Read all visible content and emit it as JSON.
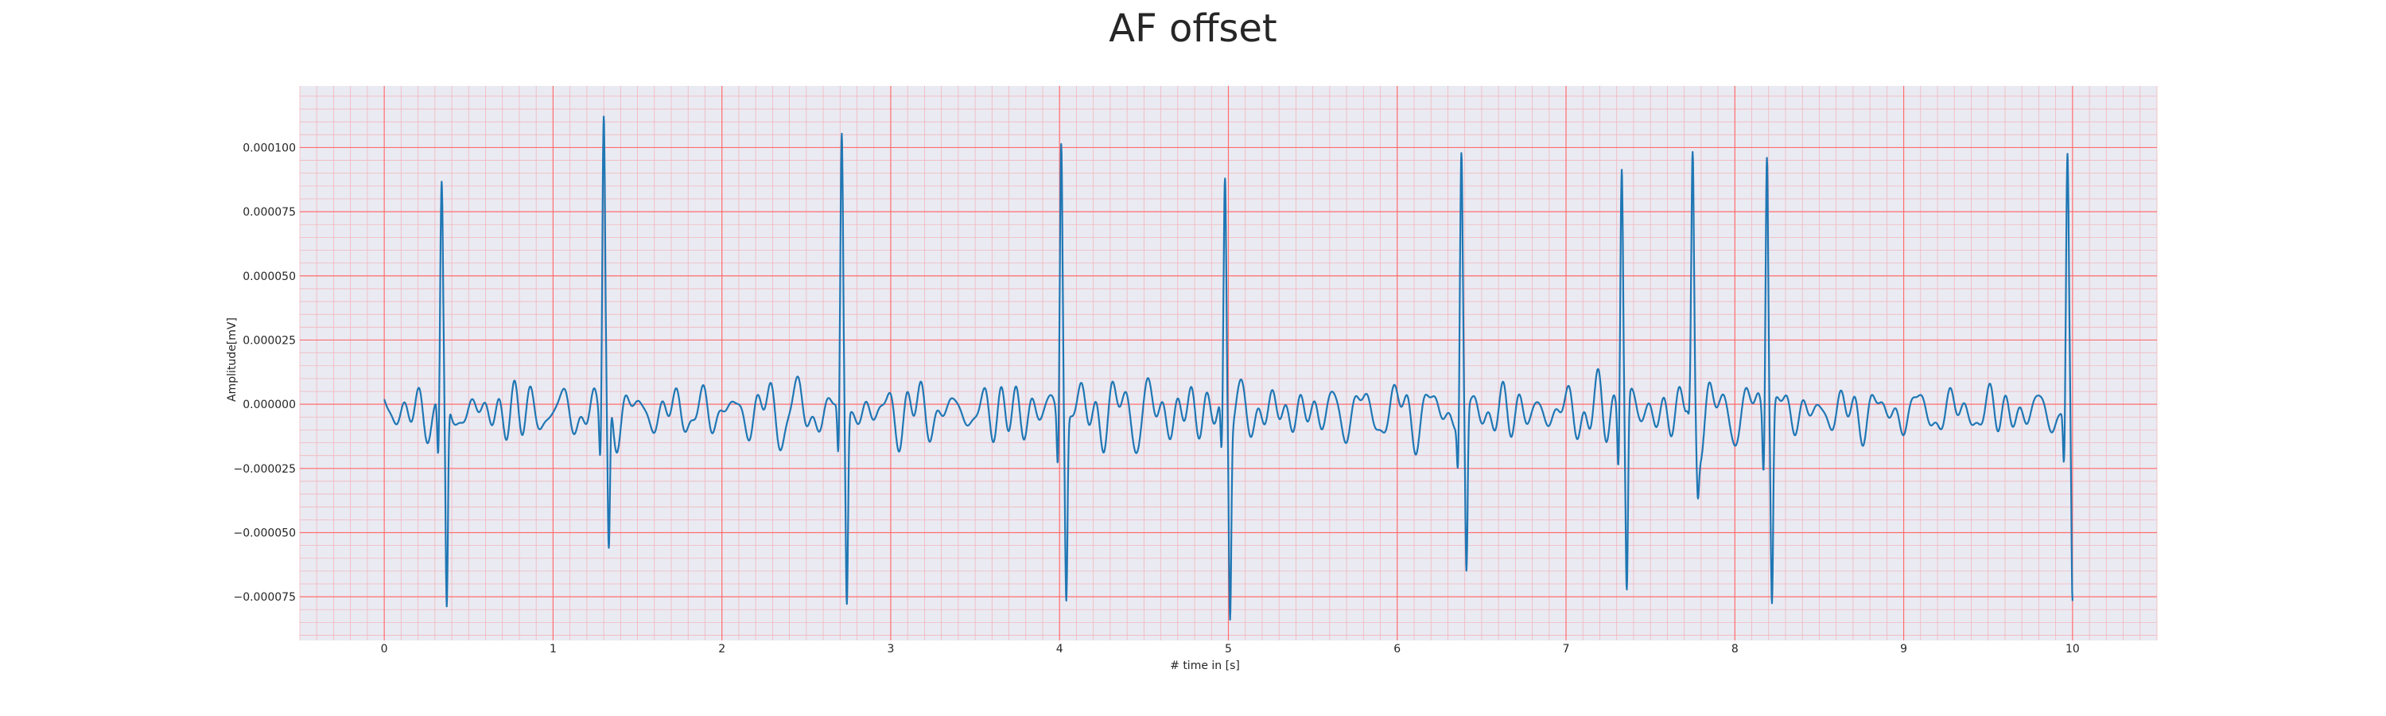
{
  "chart_data": {
    "type": "line",
    "title": "AF offset",
    "xlabel": "# time in [s]",
    "ylabel": "Amplitude[mV]",
    "xlim": [
      -0.5,
      10.5
    ],
    "ylim": [
      -9.2e-05,
      0.000124
    ],
    "x_ticks": [
      0,
      1,
      2,
      3,
      4,
      5,
      6,
      7,
      8,
      9,
      10
    ],
    "x_tick_labels": [
      "0",
      "1",
      "2",
      "3",
      "4",
      "5",
      "6",
      "7",
      "8",
      "9",
      "10"
    ],
    "y_ticks": [
      -7.5e-05,
      -5e-05,
      -2.5e-05,
      0,
      2.5e-05,
      5e-05,
      7.5e-05,
      0.0001
    ],
    "y_tick_labels": [
      "−0.000075",
      "−0.000050",
      "−0.000025",
      "0.000000",
      "0.000025",
      "0.000050",
      "0.000075",
      "0.000100"
    ],
    "grid": true,
    "minor_grid": true,
    "series": [
      {
        "color": "#1f77b4",
        "beats": [
          {
            "t": 0.34,
            "r": 8.4e-05,
            "s": -8.1e-05
          },
          {
            "t": 1.3,
            "r": 0.000115,
            "s": -6.2e-05
          },
          {
            "t": 2.71,
            "r": 0.000108,
            "s": -7.3e-05
          },
          {
            "t": 4.01,
            "r": 0.000113,
            "s": -6.9e-05
          },
          {
            "t": 4.98,
            "r": 9.2e-05,
            "s": -7.2e-05
          },
          {
            "t": 6.38,
            "r": 0.000101,
            "s": -6.5e-05
          },
          {
            "t": 7.33,
            "r": 0.000105,
            "s": -7e-05
          },
          {
            "t": 7.75,
            "r": 9.5e-05,
            "s": -2e-05
          },
          {
            "t": 8.19,
            "r": 0.000114,
            "s": -7.1e-05
          },
          {
            "t": 9.97,
            "r": 9.6e-05,
            "s": -7.8e-05
          }
        ],
        "baseline_range": [
          -1.5e-05,
          1.8e-05
        ]
      }
    ]
  },
  "colors": {
    "plot_background": "#eaeaf2",
    "major_grid": "#ff6e6e",
    "minor_grid": "#f2b6bd",
    "line": "#1f77b4"
  }
}
